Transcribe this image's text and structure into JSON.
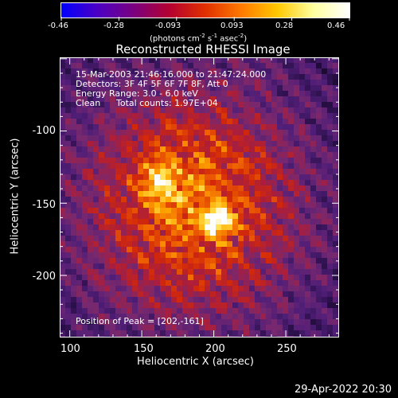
{
  "colorbar": {
    "tick_labels": [
      "-0.46",
      "-0.28",
      "-0.093",
      "0.093",
      "0.28",
      "0.46"
    ],
    "min": -0.46,
    "max": 0.46,
    "unit_label": "(photons cm",
    "unit_exp1": "-2",
    "unit_mid1": " s",
    "unit_exp2": "-1",
    "unit_mid2": " asec",
    "unit_exp3": "-2",
    "unit_end": ")",
    "colormap": [
      "#0000ff",
      "#4b00c4",
      "#7a0080",
      "#b40030",
      "#e03000",
      "#ff7a00",
      "#ffc800",
      "#ffffa0",
      "#ffffff"
    ]
  },
  "title": "Reconstructed RHESSI Image",
  "info_lines": {
    "time": "15-Mar-2003 21:46:16.000 to 21:47:24.000",
    "detectors": "Detectors: 3F 4F 5F 6F 7F 8F, Att 0",
    "energy": "Energy Range: 3.0 - 6.0 keV",
    "clean": "Clean",
    "counts": "Total counts: 1.97E+04"
  },
  "peak_text": "Position of Peak = [202,-161]",
  "x_axis": {
    "label": "Heliocentric X (arcsec)",
    "ticks": [
      "100",
      "150",
      "200",
      "250"
    ],
    "range": [
      93,
      287
    ]
  },
  "y_axis": {
    "label": "Heliocentric Y (arcsec)",
    "ticks": [
      "-100",
      "-150",
      "-200"
    ],
    "range": [
      -243,
      -49
    ]
  },
  "footer_date": "29-Apr-2022 20:30",
  "image": {
    "peak": [
      202,
      -161
    ],
    "secondary_peak": [
      163,
      -135
    ]
  }
}
